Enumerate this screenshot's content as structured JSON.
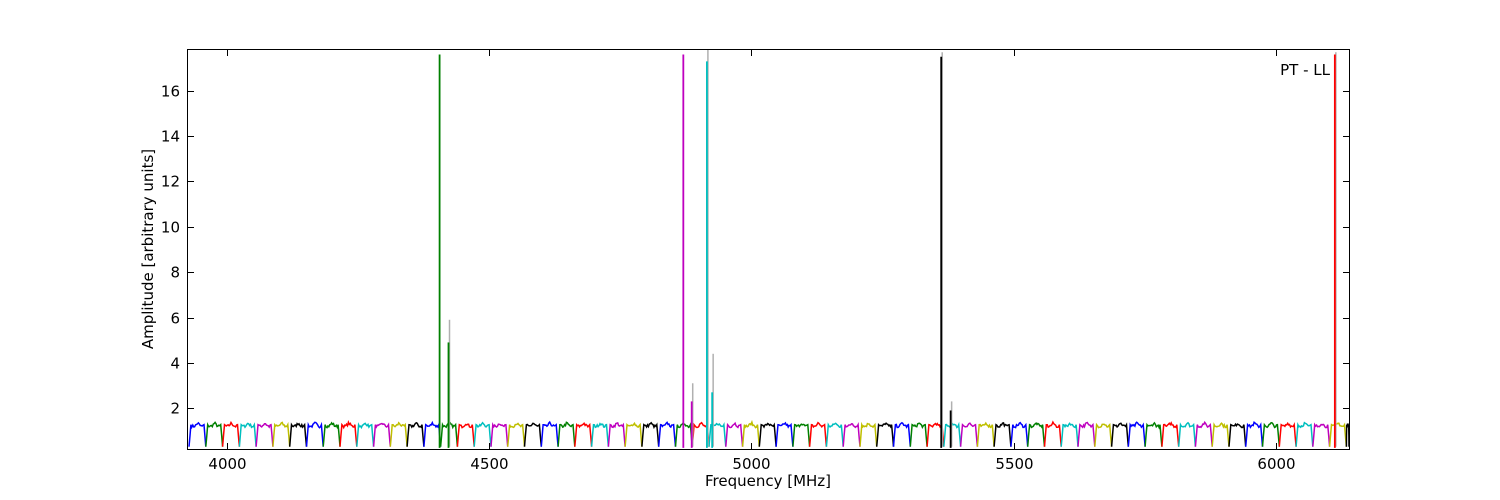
{
  "chart_data": {
    "type": "line",
    "title": "",
    "annotation": "PT - LL",
    "xlabel": "Frequency [MHz]",
    "ylabel": "Amplitude [arbitrary units]",
    "xlim": [
      3925,
      6140
    ],
    "ylim": [
      0.2,
      17.8
    ],
    "xticks": [
      4000,
      4500,
      5000,
      5500,
      6000
    ],
    "yticks": [
      2,
      4,
      6,
      8,
      10,
      12,
      14,
      16
    ],
    "grid": false,
    "legend": "none",
    "subband_width_mhz": 64,
    "band_colors": [
      "#0000ff",
      "#008000",
      "#ff0000",
      "#00bfbf",
      "#bf00bf",
      "#bfbf00",
      "#000000"
    ],
    "raw_overlay_color": "#b0b0b0",
    "bandpass_baseline": {
      "low": 0.3,
      "high": 1.35
    },
    "spikes": [
      {
        "x": 4405,
        "y": 17.6,
        "color": "#008000"
      },
      {
        "x": 4422,
        "y": 4.9,
        "color": "#008000",
        "raw_y": 5.9
      },
      {
        "x": 4870,
        "y": 17.6,
        "color": "#bf00bf"
      },
      {
        "x": 4886,
        "y": 2.3,
        "color": "#bf00bf",
        "raw_y": 3.1
      },
      {
        "x": 4915,
        "y": 17.3,
        "color": "#00bfbf",
        "raw_y": 17.8
      },
      {
        "x": 4925,
        "y": 2.7,
        "color": "#00bfbf",
        "raw_y": 4.4
      },
      {
        "x": 5362,
        "y": 17.5,
        "color": "#000000",
        "raw_y": 17.7
      },
      {
        "x": 5380,
        "y": 1.9,
        "color": "#000000",
        "raw_y": 2.3
      },
      {
        "x": 6113,
        "y": 17.6,
        "color": "#ff0000",
        "raw_y": 17.7
      }
    ]
  }
}
